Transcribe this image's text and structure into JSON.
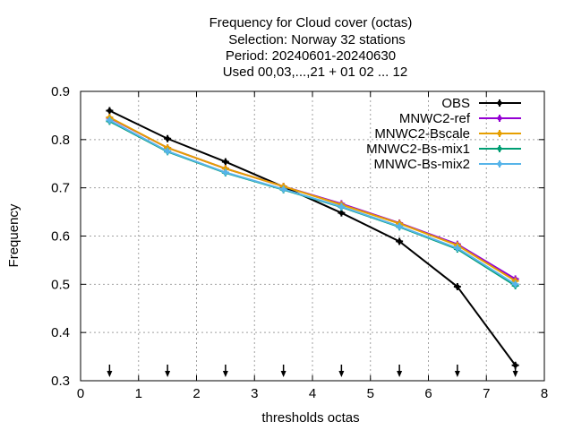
{
  "chart_data": {
    "type": "line",
    "title_lines": [
      "Frequency  for Cloud cover (octas)",
      "Selection: Norway     32 stations",
      "Period: 20240601-20240630",
      "Used 00,03,...,21 + 01 02 ... 12"
    ],
    "xlabel": "thresholds octas",
    "ylabel": "Frequency",
    "xlim": [
      0,
      8
    ],
    "ylim": [
      0.3,
      0.9
    ],
    "xticks": [
      "0",
      "1",
      "2",
      "3",
      "4",
      "5",
      "6",
      "7",
      "8"
    ],
    "yticks": [
      "0.3",
      "0.4",
      "0.5",
      "0.6",
      "0.7",
      "0.8",
      "0.9"
    ],
    "grid": true,
    "legend_position": "top-right",
    "x": [
      0.5,
      1.5,
      2.5,
      3.5,
      4.5,
      5.5,
      6.5,
      7.5
    ],
    "series": [
      {
        "name": "OBS",
        "color": "#000000",
        "values": [
          0.86,
          0.802,
          0.754,
          0.702,
          0.648,
          0.589,
          0.495,
          0.332
        ]
      },
      {
        "name": "MNWC2-ref",
        "color": "#9400d3",
        "values": [
          0.845,
          0.783,
          0.74,
          0.703,
          0.667,
          0.627,
          0.583,
          0.511
        ]
      },
      {
        "name": "MNWC2-Bscale",
        "color": "#e69f00",
        "values": [
          0.846,
          0.783,
          0.74,
          0.703,
          0.665,
          0.626,
          0.581,
          0.507
        ]
      },
      {
        "name": "MNWC2-Bs-mix1",
        "color": "#009e73",
        "values": [
          0.838,
          0.775,
          0.731,
          0.696,
          0.66,
          0.619,
          0.573,
          0.497
        ]
      },
      {
        "name": "MNWC-Bs-mix2",
        "color": "#56b4e9",
        "values": [
          0.84,
          0.776,
          0.732,
          0.697,
          0.661,
          0.62,
          0.575,
          0.5
        ]
      }
    ],
    "threshold_arrows_x": [
      0.5,
      1.5,
      2.5,
      3.5,
      4.5,
      5.5,
      6.5,
      7.5
    ]
  }
}
